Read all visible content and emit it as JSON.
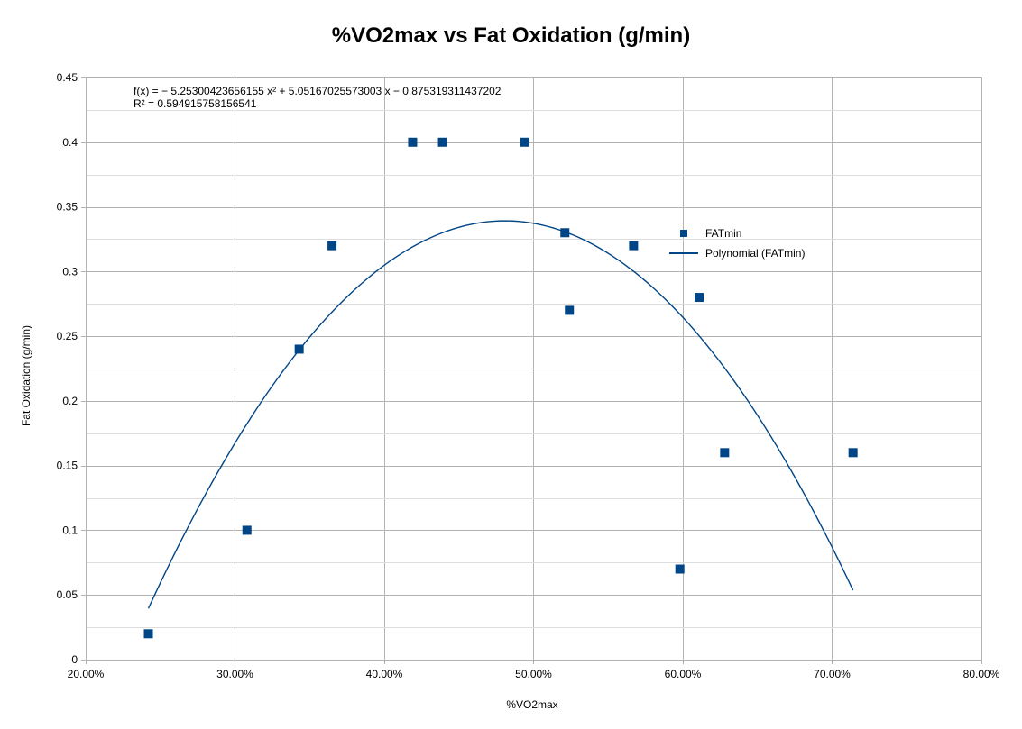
{
  "chart_data": {
    "type": "scatter",
    "title": "%VO2max vs Fat Oxidation (g/min)",
    "xlabel": "%VO2max",
    "ylabel": "Fat Oxidation (g/min)",
    "xlim": [
      0.2,
      0.8
    ],
    "ylim": [
      0,
      0.45
    ],
    "x_ticks": [
      0.2,
      0.3,
      0.4,
      0.5,
      0.6,
      0.7,
      0.8
    ],
    "x_tick_labels": [
      "20.00%",
      "30.00%",
      "40.00%",
      "50.00%",
      "60.00%",
      "70.00%",
      "80.00%"
    ],
    "y_ticks": [
      0,
      0.05,
      0.1,
      0.15,
      0.2,
      0.25,
      0.3,
      0.35,
      0.4,
      0.45
    ],
    "y_tick_labels": [
      "0",
      "0.05",
      "0.1",
      "0.15",
      "0.2",
      "0.25",
      "0.3",
      "0.35",
      "0.4",
      "0.45"
    ],
    "grid": true,
    "legend_position": "right",
    "series": [
      {
        "name": "FATmin",
        "color": "#004586",
        "marker": "square",
        "points": [
          {
            "x": 0.242,
            "y": 0.02
          },
          {
            "x": 0.308,
            "y": 0.1
          },
          {
            "x": 0.343,
            "y": 0.24
          },
          {
            "x": 0.365,
            "y": 0.32
          },
          {
            "x": 0.419,
            "y": 0.4
          },
          {
            "x": 0.439,
            "y": 0.4
          },
          {
            "x": 0.494,
            "y": 0.4
          },
          {
            "x": 0.521,
            "y": 0.33
          },
          {
            "x": 0.524,
            "y": 0.27
          },
          {
            "x": 0.567,
            "y": 0.32
          },
          {
            "x": 0.598,
            "y": 0.07
          },
          {
            "x": 0.611,
            "y": 0.28
          },
          {
            "x": 0.628,
            "y": 0.16
          },
          {
            "x": 0.714,
            "y": 0.16
          }
        ]
      }
    ],
    "trendline": {
      "name": "Polynomial (FATmin)",
      "type": "polynomial",
      "color": "#004586",
      "coefficients": {
        "a": -5.25300423656155,
        "b": 5.05167025573003,
        "c": -0.875319311437202
      },
      "x_range": [
        0.242,
        0.714
      ],
      "equation_text": "f(x) = − 5.25300423656155 x² + 5.05167025573003 x − 0.875319311437202",
      "r2_text": "R² = 0.594915758156541"
    }
  }
}
